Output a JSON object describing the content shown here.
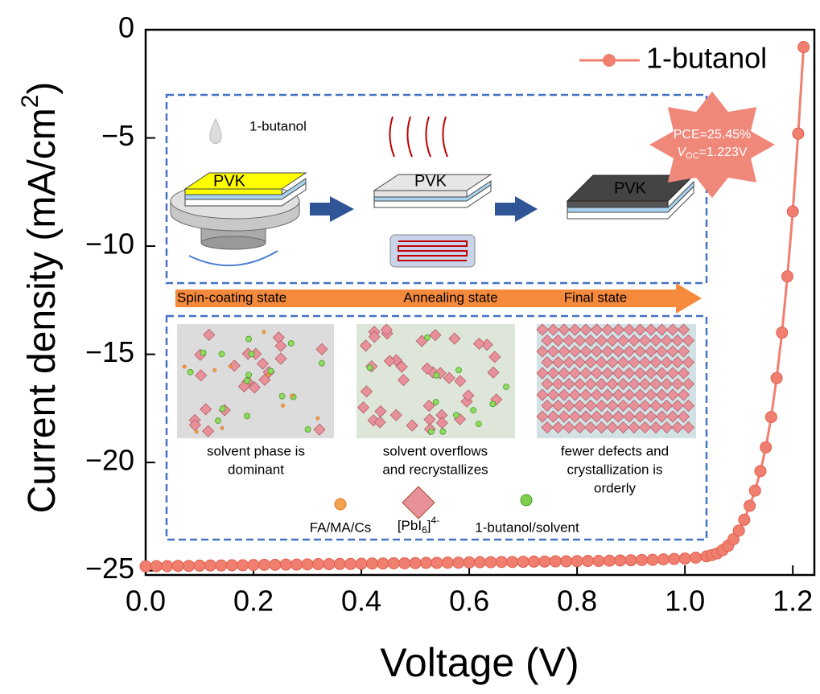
{
  "chart_data": {
    "type": "line",
    "xlabel": "Voltage (V)",
    "ylabel": {
      "text": "Current density (mA/cm",
      "sup": "2",
      "end": ")"
    },
    "x": [
      0,
      0.02,
      0.04,
      0.06,
      0.08,
      0.1,
      0.12,
      0.14,
      0.16,
      0.18,
      0.2,
      0.22,
      0.24,
      0.26,
      0.28,
      0.3,
      0.32,
      0.34,
      0.36,
      0.38,
      0.4,
      0.42,
      0.44,
      0.46,
      0.48,
      0.5,
      0.52,
      0.54,
      0.56,
      0.58,
      0.6,
      0.62,
      0.64,
      0.66,
      0.68,
      0.7,
      0.72,
      0.74,
      0.76,
      0.78,
      0.8,
      0.82,
      0.84,
      0.86,
      0.88,
      0.9,
      0.92,
      0.94,
      0.96,
      0.98,
      1.0,
      1.02,
      1.04,
      1.05,
      1.06,
      1.07,
      1.08,
      1.09,
      1.1,
      1.11,
      1.12,
      1.13,
      1.14,
      1.15,
      1.16,
      1.17,
      1.18,
      1.19,
      1.2,
      1.21,
      1.22
    ],
    "series": [
      {
        "name": "1-butanol",
        "color": "#f07f6f",
        "values": [
          -24.8,
          -24.79,
          -24.79,
          -24.78,
          -24.78,
          -24.77,
          -24.76,
          -24.76,
          -24.75,
          -24.75,
          -24.74,
          -24.73,
          -24.73,
          -24.72,
          -24.72,
          -24.71,
          -24.7,
          -24.7,
          -24.69,
          -24.69,
          -24.68,
          -24.67,
          -24.67,
          -24.66,
          -24.66,
          -24.65,
          -24.64,
          -24.64,
          -24.63,
          -24.63,
          -24.62,
          -24.61,
          -24.61,
          -24.6,
          -24.6,
          -24.59,
          -24.58,
          -24.58,
          -24.57,
          -24.57,
          -24.56,
          -24.55,
          -24.55,
          -24.54,
          -24.53,
          -24.52,
          -24.51,
          -24.5,
          -24.48,
          -24.46,
          -24.44,
          -24.4,
          -24.34,
          -24.28,
          -24.2,
          -24.05,
          -23.85,
          -23.55,
          -23.15,
          -22.65,
          -22.0,
          -21.3,
          -20.4,
          -19.3,
          -17.9,
          -16.1,
          -14.0,
          -11.4,
          -8.4,
          -4.8,
          -0.8
        ]
      }
    ],
    "xlim": [
      0,
      1.24
    ],
    "ylim": [
      -25.2,
      0
    ],
    "xticks": [
      {
        "value": 0,
        "label": "0.0"
      },
      0.2,
      0.4,
      0.6,
      0.8,
      {
        "value": 1,
        "label": "1.0"
      },
      1.2
    ],
    "yticks": [
      0,
      {
        "value": -5,
        "label": "−5"
      },
      {
        "value": -10,
        "label": "−10"
      },
      {
        "value": -15,
        "label": "−15"
      },
      {
        "value": -20,
        "label": "−20"
      },
      {
        "value": -25,
        "label": "−25"
      }
    ],
    "legend": "upper right",
    "badge": {
      "pce": "PCE=25.45%",
      "voc": [
        "V",
        "OC",
        "=1.223V"
      ]
    },
    "inset": {
      "drop_label": "1-butanol",
      "film_labels": [
        "PVK",
        "PVK",
        "PVK"
      ],
      "stages": [
        "Spin-coating state",
        "Annealing state",
        "Final state"
      ],
      "captions": [
        [
          "solvent phase is",
          "dominant"
        ],
        [
          "solvent overflows",
          "and recrystallizes"
        ],
        [
          "fewer defects and",
          "crystallization is",
          "orderly"
        ]
      ],
      "species": {
        "cation": "FA/MA/Cs",
        "octahedron": [
          "[PbI",
          "6",
          "]",
          "4-"
        ],
        "solvent": "1-butanol/solvent"
      }
    }
  }
}
